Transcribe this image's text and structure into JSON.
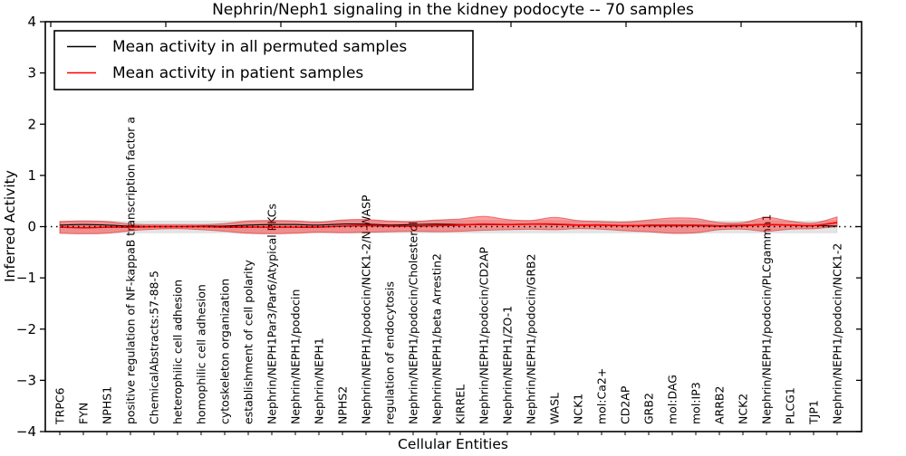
{
  "figure": {
    "background": "#ffffff"
  },
  "legend": {
    "entries": [
      {
        "label": "Mean activity in all permuted samples",
        "color": "#000000"
      },
      {
        "label": "Mean activity in patient samples",
        "color": "#ff0000"
      }
    ]
  },
  "chart_data": {
    "type": "line",
    "title": "Nephrin/Neph1 signaling in the kidney podocyte -- 70 samples",
    "xlabel": "Cellular Entities",
    "ylabel": "Inferred Activity",
    "ylim": [
      -4,
      4
    ],
    "yticks": [
      4,
      3,
      2,
      1,
      0,
      -1,
      -2,
      -3,
      -4
    ],
    "grid": false,
    "legend_position": "upper left",
    "zero_line": {
      "style": "dotted",
      "color": "#000000",
      "y": 0
    },
    "categories": [
      "TRPC6",
      "FYN",
      "NPHS1",
      "positive regulation of NF-kappaB transcription factor a",
      "ChemicalAbstracts:57-88-5",
      "heterophilic cell adhesion",
      "homophilic cell adhesion",
      "cytoskeleton organization",
      "establishment of cell polarity",
      "Nephrin/NEPH1Par3/Par6/Atypical PKCs",
      "Nephrin/NEPH1/podocin",
      "Nephrin/NEPH1",
      "NPHS2",
      "Nephrin/NEPH1/podocin/NCK1-2/N-WASP",
      "regulation of endocytosis",
      "Nephrin/NEPH1/podocin/Cholesterol",
      "Nephrin/NEPH1/beta Arrestin2",
      "KIRREL",
      "Nephrin/NEPH1/podocin/CD2AP",
      "Nephrin/NEPH1/ZO-1",
      "Nephrin/NEPH1/podocin/GRB2",
      "WASL",
      "NCK1",
      "mol:Ca2+",
      "CD2AP",
      "GRB2",
      "mol:DAG",
      "mol:IP3",
      "ARRB2",
      "NCK2",
      "Nephrin/NEPH1/podocin/PLCgamma1",
      "PLCG1",
      "TJP1",
      "Nephrin/NEPH1/podocin/NCK1-2"
    ],
    "series": [
      {
        "name": "Mean activity in all permuted samples",
        "color": "#000000",
        "values": [
          0.03,
          0.04,
          0.03,
          0.01,
          0.0,
          0.0,
          0.01,
          0.01,
          0.03,
          0.04,
          0.04,
          0.03,
          0.05,
          0.05,
          0.03,
          0.04,
          0.05,
          0.04,
          0.04,
          0.04,
          0.05,
          0.04,
          0.03,
          0.03,
          0.02,
          0.03,
          0.03,
          0.03,
          0.02,
          0.03,
          0.04,
          0.03,
          0.02,
          0.01
        ]
      },
      {
        "name": "Mean activity in patient samples",
        "color": "#ff0000",
        "values": [
          -0.01,
          -0.02,
          -0.01,
          -0.01,
          0.0,
          0.0,
          0.0,
          -0.01,
          -0.01,
          -0.01,
          -0.01,
          -0.01,
          0.01,
          0.02,
          0.01,
          0.01,
          0.02,
          0.03,
          0.05,
          0.04,
          0.05,
          0.05,
          0.03,
          0.03,
          0.02,
          0.02,
          0.02,
          0.02,
          0.01,
          0.02,
          0.04,
          0.03,
          0.02,
          0.08
        ]
      }
    ],
    "bands": [
      {
        "name": "permuted samples spread",
        "fill": "rgba(0,0,0,0.10)",
        "edge": "rgba(0,0,0,0.08)",
        "top": [
          0.11,
          0.12,
          0.11,
          0.1,
          0.11,
          0.11,
          0.11,
          0.11,
          0.12,
          0.12,
          0.12,
          0.11,
          0.12,
          0.12,
          0.11,
          0.11,
          0.12,
          0.12,
          0.12,
          0.12,
          0.12,
          0.12,
          0.11,
          0.12,
          0.11,
          0.12,
          0.12,
          0.12,
          0.11,
          0.11,
          0.12,
          0.11,
          0.11,
          0.12
        ],
        "bottom": [
          -0.12,
          -0.13,
          -0.12,
          -0.12,
          -0.12,
          -0.12,
          -0.12,
          -0.12,
          -0.13,
          -0.13,
          -0.12,
          -0.12,
          -0.12,
          -0.12,
          -0.12,
          -0.12,
          -0.12,
          -0.12,
          -0.12,
          -0.12,
          -0.12,
          -0.12,
          -0.12,
          -0.12,
          -0.12,
          -0.12,
          -0.13,
          -0.13,
          -0.12,
          -0.12,
          -0.12,
          -0.12,
          -0.12,
          -0.12
        ]
      },
      {
        "name": "patient samples spread",
        "fill": "rgba(255,0,0,0.38)",
        "edge": "rgba(204,0,0,0.45)",
        "top": [
          0.1,
          0.11,
          0.1,
          0.05,
          0.04,
          0.04,
          0.04,
          0.06,
          0.11,
          0.12,
          0.11,
          0.09,
          0.13,
          0.14,
          0.11,
          0.1,
          0.13,
          0.15,
          0.2,
          0.14,
          0.12,
          0.18,
          0.12,
          0.1,
          0.09,
          0.13,
          0.17,
          0.16,
          0.08,
          0.08,
          0.18,
          0.11,
          0.07,
          0.19
        ],
        "bottom": [
          -0.13,
          -0.14,
          -0.13,
          -0.08,
          -0.05,
          -0.04,
          -0.06,
          -0.09,
          -0.13,
          -0.14,
          -0.13,
          -0.11,
          -0.12,
          -0.11,
          -0.1,
          -0.09,
          -0.1,
          -0.09,
          -0.07,
          -0.06,
          -0.05,
          -0.06,
          -0.04,
          -0.05,
          -0.08,
          -0.1,
          -0.13,
          -0.12,
          -0.06,
          -0.05,
          -0.09,
          -0.05,
          -0.04,
          0.0
        ]
      }
    ]
  }
}
